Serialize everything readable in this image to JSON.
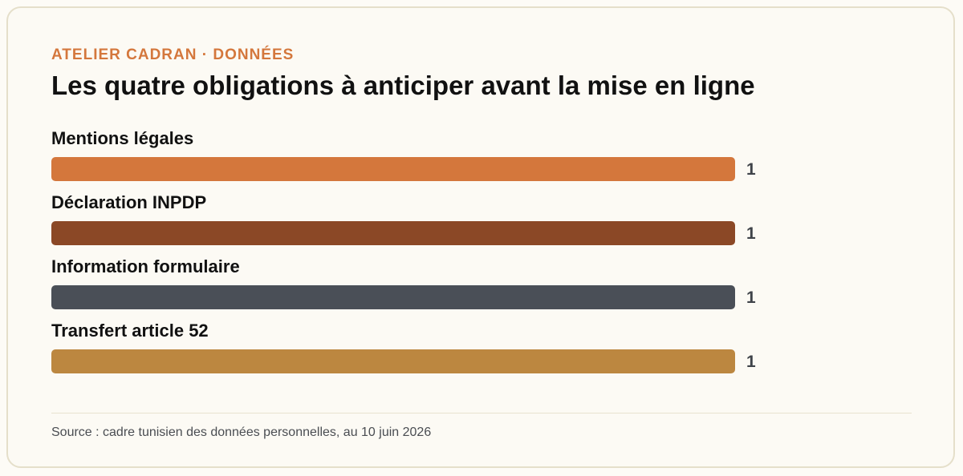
{
  "header": {
    "eyebrow": "ATELIER CADRAN · DONNÉES",
    "title": "Les quatre obligations à anticiper avant la mise en ligne"
  },
  "chart_data": {
    "type": "bar",
    "orientation": "horizontal",
    "categories": [
      "Mentions légales",
      "Déclaration INPDP",
      "Information formulaire",
      "Transfert article 52"
    ],
    "values": [
      1,
      1,
      1,
      1
    ],
    "value_labels": [
      "1",
      "1",
      "1",
      "1"
    ],
    "colors": [
      "#d4773c",
      "#8b4826",
      "#4a4f57",
      "#bc8740"
    ],
    "xlim": [
      0,
      1
    ],
    "grid": false,
    "legend": "none"
  },
  "footer": {
    "source": "Source : cadre tunisien des données personnelles, au 10 juin 2026"
  }
}
